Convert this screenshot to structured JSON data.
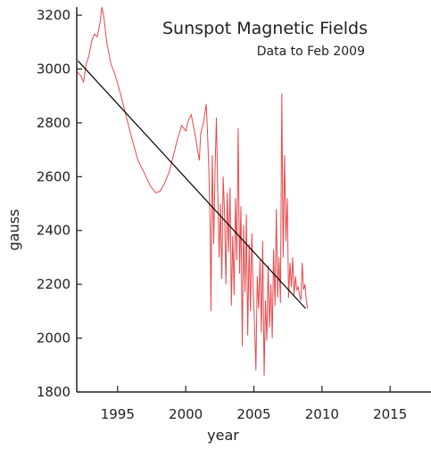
{
  "chart_data": {
    "type": "line",
    "title": "Sunspot Magnetic Fields",
    "subtitle": "Data to Feb 2009",
    "xlabel": "year",
    "ylabel": "gauss",
    "xlim": [
      1992,
      2018
    ],
    "ylim": [
      1800,
      3230
    ],
    "x_ticks": [
      1995,
      2000,
      2005,
      2010,
      2015
    ],
    "y_ticks": [
      1800,
      2000,
      2200,
      2400,
      2600,
      2800,
      3000,
      3200
    ],
    "grid": false,
    "colors": {
      "data": "#e8484a",
      "trend": "#000000",
      "axis": "#222222"
    },
    "series": [
      {
        "type": "line",
        "points": [
          [
            1992.0,
            2990
          ],
          [
            1992.3,
            2975
          ],
          [
            1992.5,
            2952
          ],
          [
            1992.7,
            3020
          ],
          [
            1992.9,
            3050
          ],
          [
            1993.1,
            3105
          ],
          [
            1993.3,
            3130
          ],
          [
            1993.5,
            3120
          ],
          [
            1993.7,
            3170
          ],
          [
            1993.85,
            3230
          ],
          [
            1994.0,
            3190
          ],
          [
            1994.2,
            3100
          ],
          [
            1994.5,
            3020
          ],
          [
            1994.8,
            2980
          ],
          [
            1995.2,
            2910
          ],
          [
            1995.6,
            2830
          ],
          [
            1996.0,
            2750
          ],
          [
            1996.5,
            2660
          ],
          [
            1997.0,
            2610
          ],
          [
            1997.4,
            2565
          ],
          [
            1997.8,
            2540
          ],
          [
            1998.1,
            2545
          ],
          [
            1998.4,
            2570
          ],
          [
            1998.8,
            2620
          ],
          [
            1999.1,
            2680
          ],
          [
            1999.4,
            2740
          ],
          [
            1999.7,
            2790
          ],
          [
            2000.0,
            2770
          ],
          [
            2000.2,
            2810
          ],
          [
            2000.4,
            2830
          ],
          [
            2000.6,
            2780
          ],
          [
            2000.8,
            2720
          ],
          [
            2001.0,
            2660
          ],
          [
            2001.1,
            2760
          ],
          [
            2001.3,
            2800
          ],
          [
            2001.5,
            2870
          ],
          [
            2001.6,
            2760
          ],
          [
            2001.7,
            2620
          ],
          [
            2001.8,
            2400
          ],
          [
            2001.85,
            2100
          ],
          [
            2001.95,
            2680
          ],
          [
            2002.05,
            2350
          ],
          [
            2002.15,
            2620
          ],
          [
            2002.25,
            2820
          ],
          [
            2002.35,
            2550
          ],
          [
            2002.45,
            2300
          ],
          [
            2002.55,
            2500
          ],
          [
            2002.65,
            2220
          ],
          [
            2002.75,
            2600
          ],
          [
            2002.85,
            2460
          ],
          [
            2002.95,
            2200
          ],
          [
            2003.05,
            2540
          ],
          [
            2003.15,
            2320
          ],
          [
            2003.25,
            2560
          ],
          [
            2003.35,
            2120
          ],
          [
            2003.45,
            2380
          ],
          [
            2003.55,
            2160
          ],
          [
            2003.65,
            2520
          ],
          [
            2003.75,
            2290
          ],
          [
            2003.85,
            2780
          ],
          [
            2003.95,
            2240
          ],
          [
            2004.05,
            2490
          ],
          [
            2004.15,
            1970
          ],
          [
            2004.25,
            2420
          ],
          [
            2004.35,
            2170
          ],
          [
            2004.45,
            2460
          ],
          [
            2004.55,
            2010
          ],
          [
            2004.65,
            2350
          ],
          [
            2004.75,
            2100
          ],
          [
            2004.85,
            2390
          ],
          [
            2004.95,
            2180
          ],
          [
            2005.05,
            2050
          ],
          [
            2005.15,
            1880
          ],
          [
            2005.25,
            2230
          ],
          [
            2005.35,
            2110
          ],
          [
            2005.45,
            2290
          ],
          [
            2005.55,
            2020
          ],
          [
            2005.65,
            2360
          ],
          [
            2005.75,
            1860
          ],
          [
            2005.85,
            2140
          ],
          [
            2005.95,
            1990
          ],
          [
            2006.05,
            2270
          ],
          [
            2006.15,
            2040
          ],
          [
            2006.25,
            2200
          ],
          [
            2006.35,
            2000
          ],
          [
            2006.45,
            2330
          ],
          [
            2006.55,
            2120
          ],
          [
            2006.65,
            2480
          ],
          [
            2006.75,
            2150
          ],
          [
            2006.85,
            2300
          ],
          [
            2006.95,
            2130
          ],
          [
            2007.05,
            2910
          ],
          [
            2007.15,
            2300
          ],
          [
            2007.25,
            2680
          ],
          [
            2007.35,
            2360
          ],
          [
            2007.45,
            2520
          ],
          [
            2007.55,
            2150
          ],
          [
            2007.65,
            2280
          ],
          [
            2007.75,
            2190
          ],
          [
            2007.85,
            2300
          ],
          [
            2007.95,
            2160
          ],
          [
            2008.05,
            2230
          ],
          [
            2008.15,
            2180
          ],
          [
            2008.25,
            2190
          ],
          [
            2008.35,
            2160
          ],
          [
            2008.45,
            2140
          ],
          [
            2008.55,
            2280
          ],
          [
            2008.65,
            2180
          ],
          [
            2008.75,
            2200
          ],
          [
            2008.85,
            2140
          ],
          [
            2008.95,
            2110
          ]
        ]
      },
      {
        "type": "trend",
        "points": [
          [
            1992.1,
            3030
          ],
          [
            2008.8,
            2110
          ]
        ]
      }
    ]
  }
}
